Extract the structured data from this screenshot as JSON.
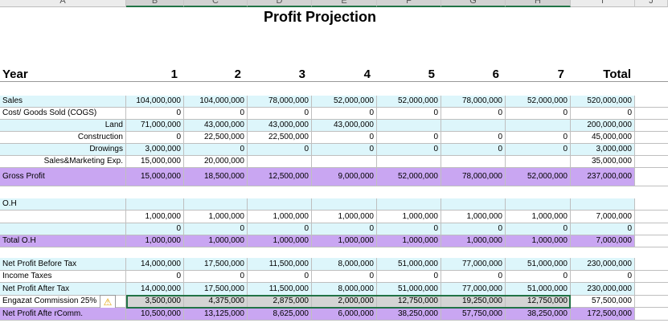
{
  "columns": [
    "A",
    "B",
    "C",
    "D",
    "E",
    "F",
    "G",
    "H",
    "I",
    "J"
  ],
  "title": "Profit Projection",
  "year_row": {
    "label": "Year",
    "years": [
      1,
      2,
      3,
      4,
      5,
      6,
      7
    ],
    "total": "Total"
  },
  "rows": [
    {
      "label": "Sales",
      "values": [
        "104,000,000",
        "104,000,000",
        "78,000,000",
        "52,000,000",
        "52,000,000",
        "78,000,000",
        "52,000,000",
        "520,000,000"
      ]
    },
    {
      "label": "Cost/ Goods Sold (COGS)",
      "values": [
        "0",
        "0",
        "0",
        "0",
        "0",
        "0",
        "0",
        "0"
      ]
    },
    {
      "label": "Land",
      "values": [
        "71,000,000",
        "43,000,000",
        "43,000,000",
        "43,000,000",
        null,
        null,
        null,
        "200,000,000"
      ]
    },
    {
      "label": "Construction",
      "values": [
        "0",
        "22,500,000",
        "22,500,000",
        "0",
        "0",
        "0",
        "0",
        "45,000,000"
      ]
    },
    {
      "label": "Drowings",
      "values": [
        "3,000,000",
        "0",
        "0",
        "0",
        "0",
        "0",
        "0",
        "3,000,000"
      ]
    },
    {
      "label": "Sales&Marketing Exp.",
      "values": [
        "15,000,000",
        "20,000,000",
        null,
        null,
        null,
        null,
        null,
        "35,000,000"
      ]
    },
    {
      "label": "Gross Profit",
      "values": [
        "15,000,000",
        "18,500,000",
        "12,500,000",
        "9,000,000",
        "52,000,000",
        "78,000,000",
        "52,000,000",
        "237,000,000"
      ]
    },
    {
      "label": "O.H",
      "values": [
        null,
        null,
        null,
        null,
        null,
        null,
        null,
        null
      ]
    },
    {
      "label": null,
      "values": [
        "1,000,000",
        "1,000,000",
        "1,000,000",
        "1,000,000",
        "1,000,000",
        "1,000,000",
        "1,000,000",
        "7,000,000"
      ]
    },
    {
      "label": null,
      "values": [
        "0",
        "0",
        "0",
        "0",
        "0",
        "0",
        "0",
        "0"
      ]
    },
    {
      "label": "Total O.H",
      "values": [
        "1,000,000",
        "1,000,000",
        "1,000,000",
        "1,000,000",
        "1,000,000",
        "1,000,000",
        "1,000,000",
        "7,000,000"
      ]
    },
    {
      "label": "Net Profit Before Tax",
      "values": [
        "14,000,000",
        "17,500,000",
        "11,500,000",
        "8,000,000",
        "51,000,000",
        "77,000,000",
        "51,000,000",
        "230,000,000"
      ]
    },
    {
      "label": "Income Taxes",
      "values": [
        "0",
        "0",
        "0",
        "0",
        "0",
        "0",
        "0",
        "0"
      ]
    },
    {
      "label": "Net Profit After Tax",
      "values": [
        "14,000,000",
        "17,500,000",
        "11,500,000",
        "8,000,000",
        "51,000,000",
        "77,000,000",
        "51,000,000",
        "230,000,000"
      ]
    },
    {
      "label": "Engazat Commission 25%",
      "values": [
        "3,500,000",
        "4,375,000",
        "2,875,000",
        "2,000,000",
        "12,750,000",
        "19,250,000",
        "12,750,000",
        "57,500,000"
      ]
    },
    {
      "label": "Net Profit Afte rComm.",
      "values": [
        "10,500,000",
        "13,125,000",
        "8,625,000",
        "6,000,000",
        "38,250,000",
        "57,750,000",
        "38,250,000",
        "172,500,000"
      ]
    }
  ]
}
